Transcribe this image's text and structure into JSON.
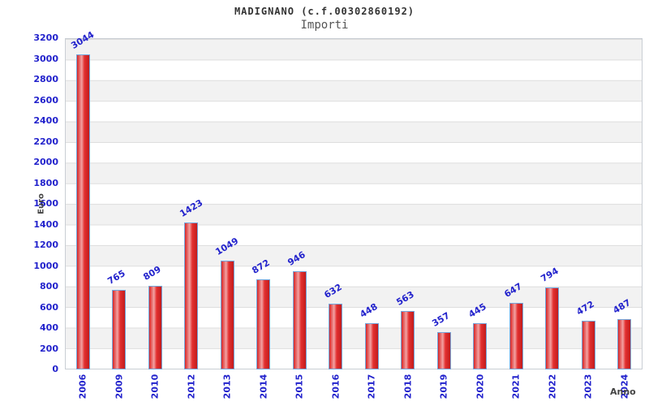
{
  "chart_data": {
    "type": "bar",
    "title": "MADIGNANO (c.f.00302860192)",
    "subtitle": "Importi",
    "xlabel": "Anno",
    "ylabel": "Euro",
    "categories": [
      "2006",
      "2009",
      "2010",
      "2012",
      "2013",
      "2014",
      "2015",
      "2016",
      "2017",
      "2018",
      "2019",
      "2020",
      "2021",
      "2022",
      "2023",
      "2024"
    ],
    "values": [
      3044,
      765,
      809,
      1423,
      1049,
      872,
      946,
      632,
      448,
      563,
      357,
      445,
      647,
      794,
      472,
      487
    ],
    "ylim": [
      0,
      3200
    ],
    "ytick_step": 200,
    "grid": true,
    "legend_position": "none",
    "colors": {
      "bar_gradient_edge": "#d92525",
      "bar_gradient_center": "#f2a2a2",
      "bar_border": "#74a7dc",
      "tick_label": "#2222cc",
      "band_stripe": "#f2f2f2",
      "gridline": "#dddddd",
      "plot_border": "#c9ced4",
      "title": "#333333",
      "subtitle": "#555555",
      "axis_title": "#444444"
    }
  }
}
